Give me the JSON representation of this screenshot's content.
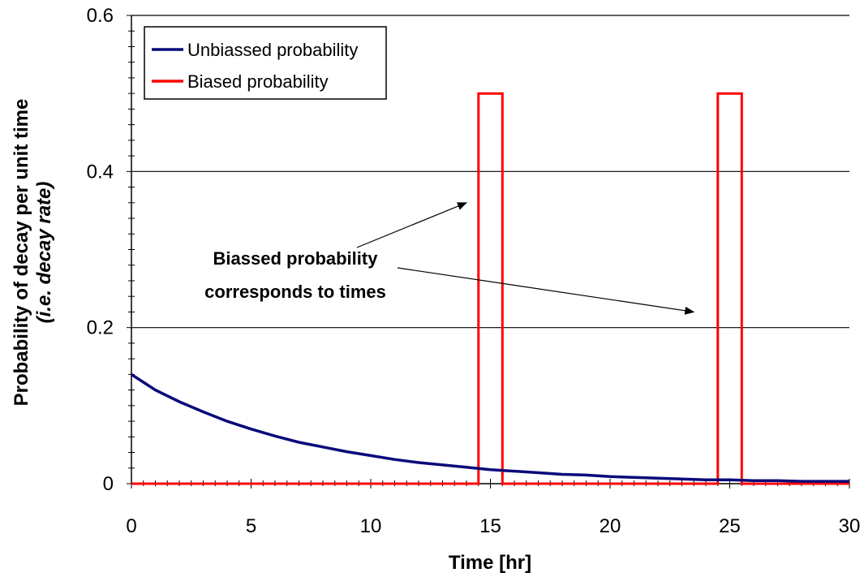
{
  "chart_data": {
    "type": "line",
    "xlabel": "Time [hr]",
    "ylabel": [
      "Probability of decay per unit time",
      "(i.e. decay rate)"
    ],
    "xlim": [
      0,
      30
    ],
    "ylim": [
      0,
      0.6
    ],
    "x_ticks": [
      "0",
      "5",
      "10",
      "15",
      "20",
      "25",
      "30"
    ],
    "y_ticks": [
      "0",
      "0.2",
      "0.4",
      "0.6"
    ],
    "grid": "horizontal",
    "legend_position": "top-left",
    "series": [
      {
        "name": "Unbiassed probability",
        "color": "#0a0a7a",
        "x": [
          0,
          1,
          2,
          3,
          4,
          5,
          6,
          7,
          8,
          9,
          10,
          11,
          12,
          13,
          14,
          15,
          16,
          17,
          18,
          19,
          20,
          21,
          22,
          23,
          24,
          25,
          26,
          27,
          28,
          29,
          30
        ],
        "values": [
          0.14,
          0.12,
          0.105,
          0.092,
          0.08,
          0.07,
          0.061,
          0.053,
          0.047,
          0.041,
          0.036,
          0.031,
          0.027,
          0.024,
          0.021,
          0.018,
          0.016,
          0.014,
          0.012,
          0.011,
          0.009,
          0.008,
          0.007,
          0.006,
          0.005,
          0.005,
          0.004,
          0.004,
          0.003,
          0.003,
          0.003
        ]
      },
      {
        "name": "Biased probability",
        "color": "#ff0000",
        "x": [
          0,
          14.5,
          14.5,
          15.5,
          15.5,
          24.5,
          24.5,
          25.5,
          25.5,
          30
        ],
        "values": [
          0,
          0,
          0.5,
          0.5,
          0,
          0,
          0.5,
          0.5,
          0,
          0
        ]
      }
    ],
    "annotations": {
      "text_line1": "Biassed probability",
      "text_line2": "corresponds to times",
      "arrow_targets": [
        {
          "x": 14.0,
          "y": 0.36
        },
        {
          "x": 23.5,
          "y": 0.22
        }
      ]
    }
  }
}
